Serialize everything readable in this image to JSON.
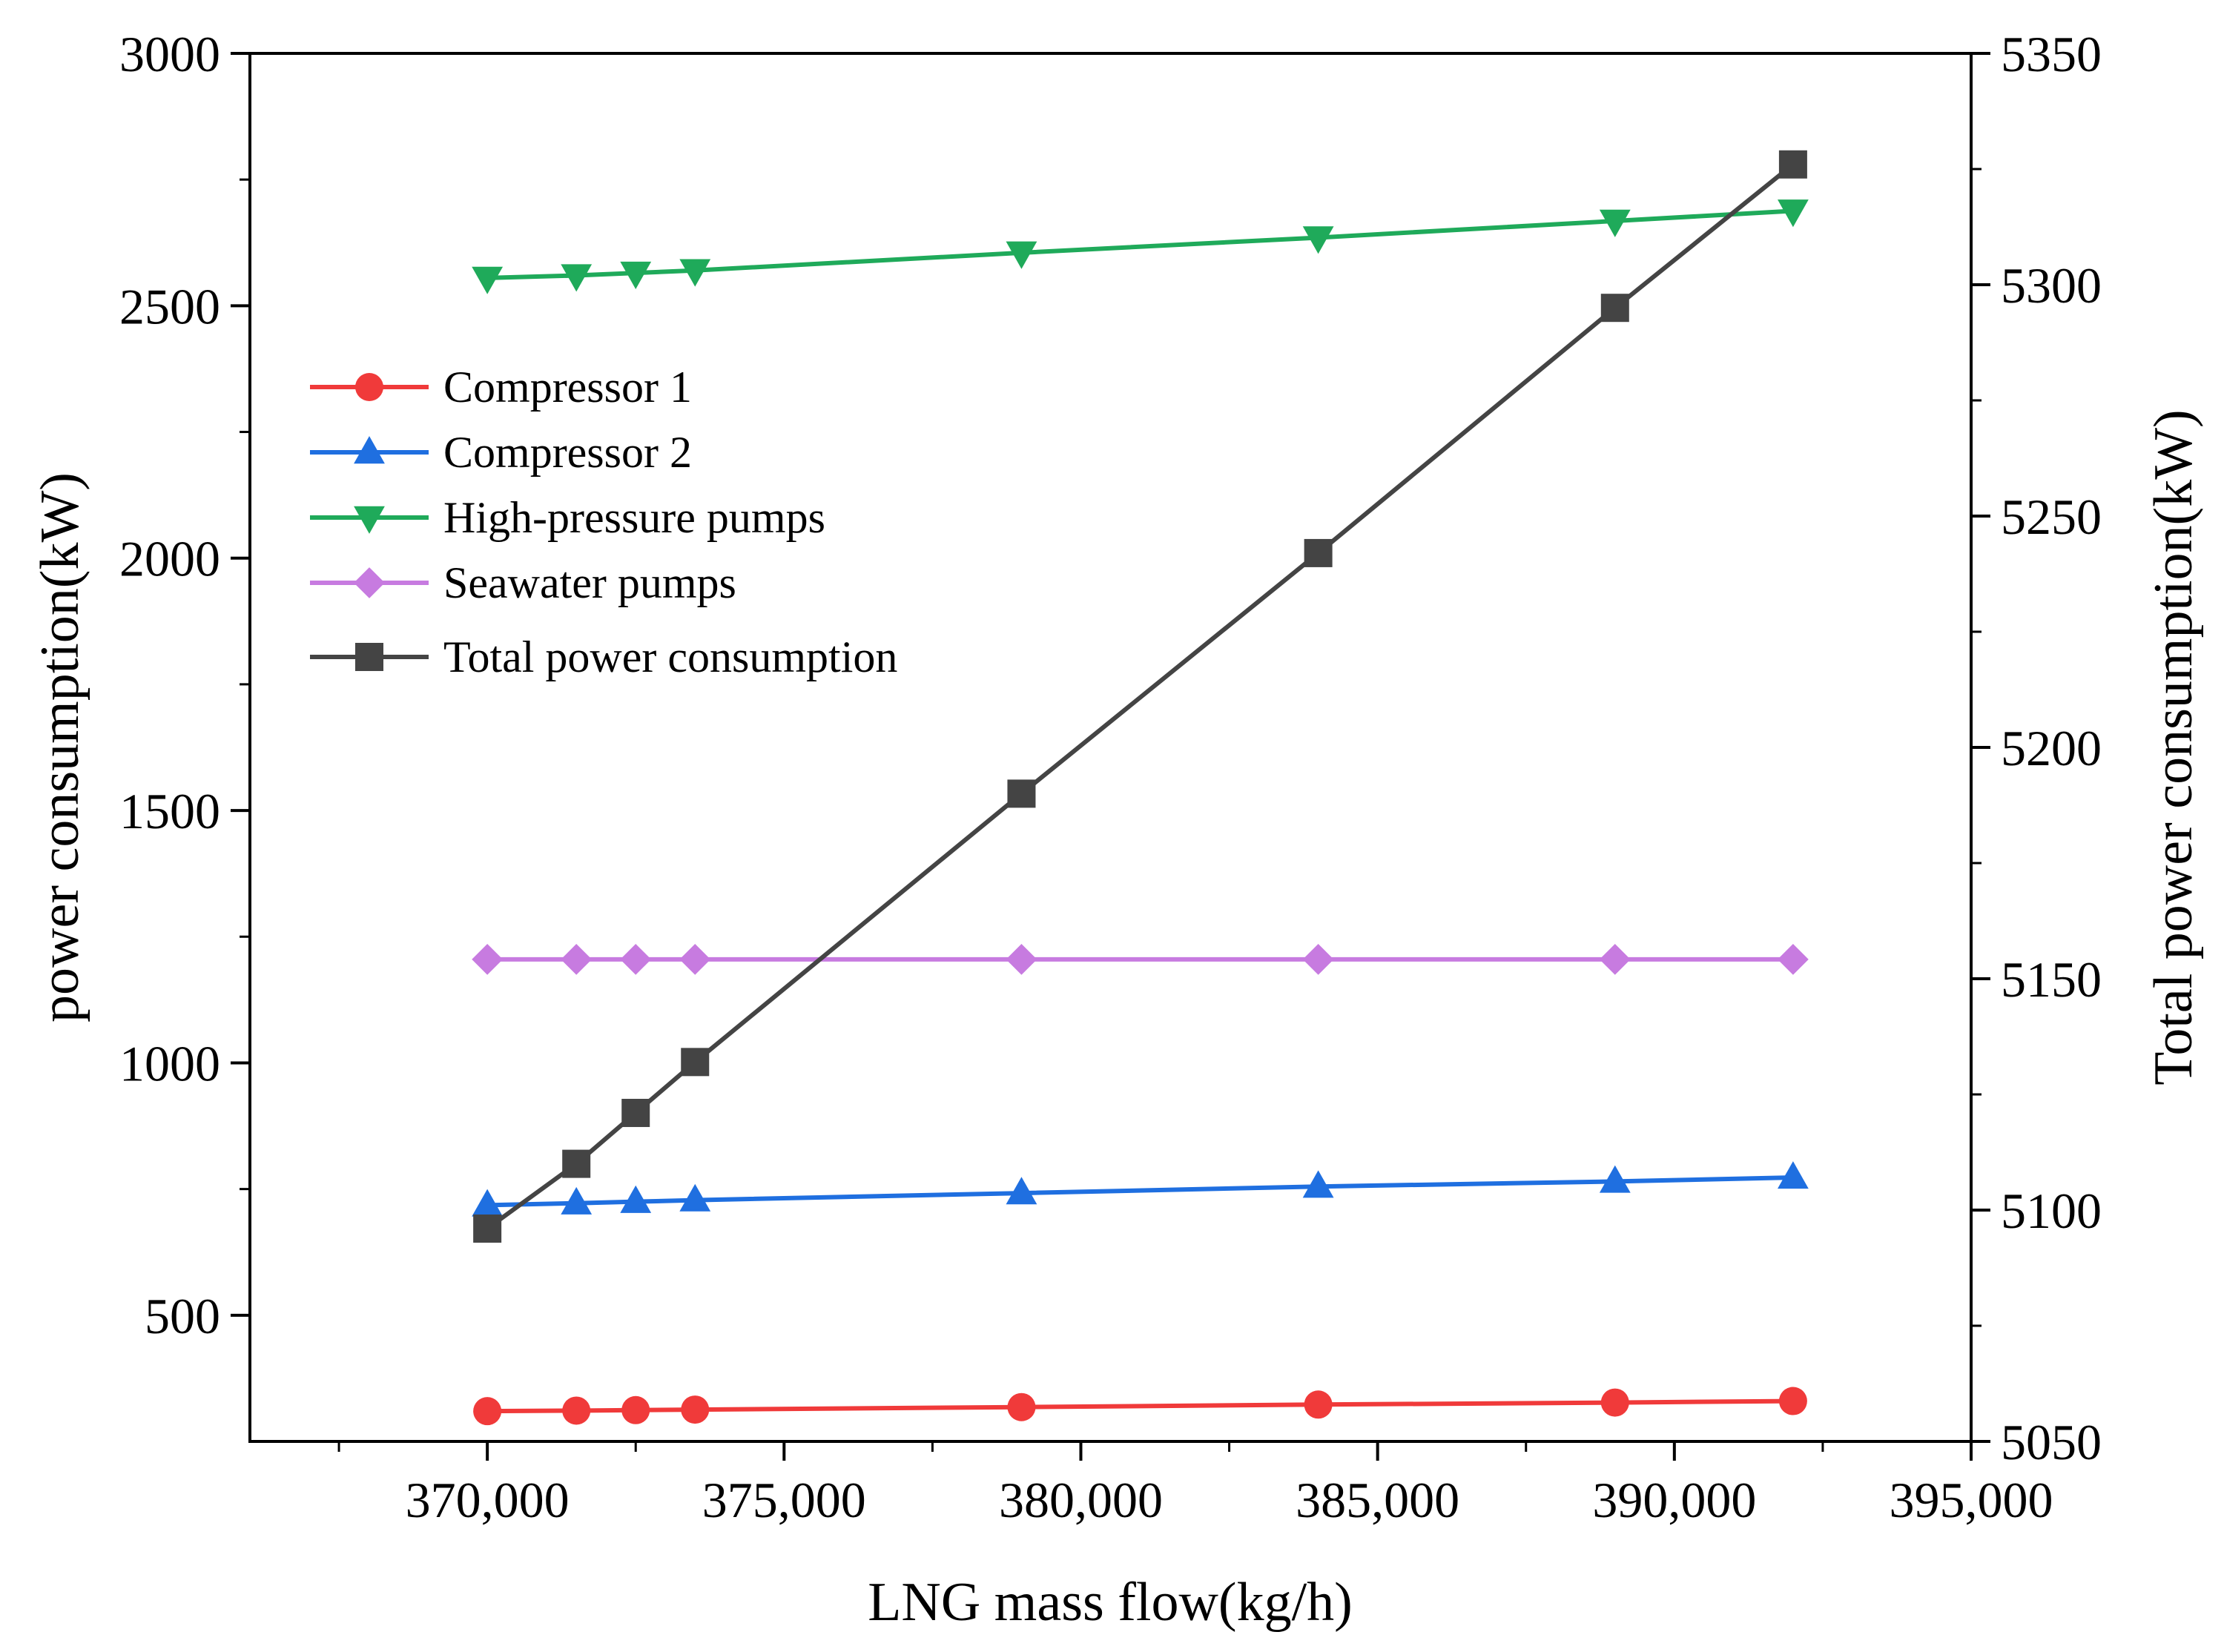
{
  "chart_data": {
    "type": "line",
    "x": [
      370000,
      371500,
      372500,
      373500,
      379000,
      384000,
      389000,
      392000
    ],
    "xlabel": "LNG mass flow(kg/h)",
    "xlim": [
      366000,
      395000
    ],
    "xticks": [
      370000,
      375000,
      380000,
      385000,
      390000,
      395000
    ],
    "xtick_labels": [
      "370,000",
      "375,000",
      "380,000",
      "385,000",
      "390,000",
      "395,000"
    ],
    "ylabel": "power consumption(kW)",
    "ylim": [
      250,
      3000
    ],
    "yticks": [
      500,
      1000,
      1500,
      2000,
      2500,
      3000
    ],
    "ytick_labels": [
      "500",
      "1000",
      "1500",
      "2000",
      "2500",
      "3000"
    ],
    "y2label": "Total power consumption(kW)",
    "y2lim": [
      5050,
      5350
    ],
    "y2ticks": [
      5050,
      5100,
      5150,
      5200,
      5250,
      5300,
      5350
    ],
    "y2tick_labels": [
      "5050",
      "5100",
      "5150",
      "5200",
      "5250",
      "5300",
      "5350"
    ],
    "legend_position": "upper-left",
    "series": [
      {
        "name": "Compressor 1",
        "axis": "left",
        "marker": "circle",
        "color": "#f03a3a",
        "values": [
          310,
          311,
          312,
          313,
          318,
          323,
          327,
          330
        ]
      },
      {
        "name": "Compressor 2",
        "axis": "left",
        "marker": "triangle-up",
        "color": "#1f6fe0",
        "values": [
          718,
          722,
          725,
          728,
          742,
          755,
          765,
          773
        ]
      },
      {
        "name": "High-pressure pumps",
        "axis": "left",
        "marker": "triangle-down",
        "color": "#1faa5a",
        "values": [
          2555,
          2560,
          2565,
          2570,
          2605,
          2635,
          2668,
          2688
        ]
      },
      {
        "name": "Seawater pumps",
        "axis": "left",
        "marker": "diamond",
        "color": "#c77be0",
        "values": [
          1205,
          1205,
          1205,
          1205,
          1205,
          1205,
          1205,
          1205
        ]
      },
      {
        "name": "Total power consumption",
        "axis": "right",
        "marker": "square",
        "color": "#444444",
        "values": [
          5096,
          5110,
          5121,
          5132,
          5190,
          5242,
          5295,
          5326
        ]
      }
    ]
  }
}
